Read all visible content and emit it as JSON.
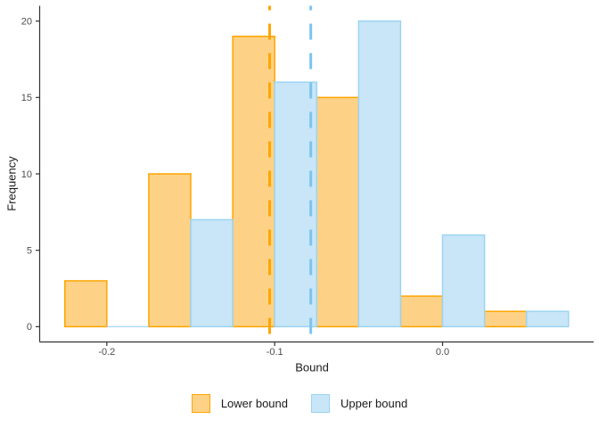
{
  "figure": {
    "background": "#FFFFFF"
  },
  "chart_data": {
    "type": "histogram",
    "title": "",
    "xlabel": "Bound",
    "ylabel": "Frequency",
    "grid": false,
    "legend_position": "bottom",
    "bin_width": 0.05,
    "x_axis": {
      "label": "Bound",
      "range": [
        -0.24,
        0.09
      ],
      "ticks": [
        -0.2,
        -0.1,
        0.0
      ],
      "tick_labels": [
        "-0.2",
        "-0.1",
        "0.0"
      ]
    },
    "y_axis": {
      "label": "Frequency",
      "range": [
        -1,
        21
      ],
      "ticks": [
        0,
        5,
        10,
        15,
        20
      ],
      "tick_labels": [
        "0",
        "5",
        "10",
        "15",
        "20"
      ]
    },
    "series": [
      {
        "name": "Lower bound",
        "fill": "#FDD286",
        "stroke": "#FFA500",
        "bars": [
          {
            "x0": -0.225,
            "x1": -0.2,
            "count": 3
          },
          {
            "x0": -0.175,
            "x1": -0.15,
            "count": 10
          },
          {
            "x0": -0.125,
            "x1": -0.1,
            "count": 19
          },
          {
            "x0": -0.075,
            "x1": -0.05,
            "count": 15
          },
          {
            "x0": -0.025,
            "x1": 0.0,
            "count": 2
          },
          {
            "x0": 0.025,
            "x1": 0.05,
            "count": 1
          }
        ]
      },
      {
        "name": "Upper bound",
        "fill": "#C8E6F7",
        "stroke": "#9CD4F2",
        "bars": [
          {
            "x0": -0.2,
            "x1": -0.175,
            "count": 0
          },
          {
            "x0": -0.15,
            "x1": -0.125,
            "count": 7
          },
          {
            "x0": -0.1,
            "x1": -0.075,
            "count": 16
          },
          {
            "x0": -0.05,
            "x1": -0.025,
            "count": 20
          },
          {
            "x0": 0.0,
            "x1": 0.025,
            "count": 6
          },
          {
            "x0": 0.05,
            "x1": 0.075,
            "count": 1
          }
        ]
      }
    ],
    "vlines": [
      {
        "series": "Lower bound",
        "x": -0.103,
        "color": "#FFA500",
        "style": "dashed"
      },
      {
        "series": "Upper bound",
        "x": -0.0785,
        "color": "#7CC4F0",
        "style": "dashed"
      }
    ]
  },
  "legend": {
    "items": [
      {
        "label": "Lower bound",
        "fill": "#FDD286",
        "stroke": "#FFA500"
      },
      {
        "label": "Upper bound",
        "fill": "#C8E6F7",
        "stroke": "#9CD4F2"
      }
    ]
  },
  "colors": {
    "axis_line": "#333333",
    "tick_mark": "#333333",
    "tick_label": "#4D4D4D",
    "axis_title": "#1A1A1A"
  }
}
